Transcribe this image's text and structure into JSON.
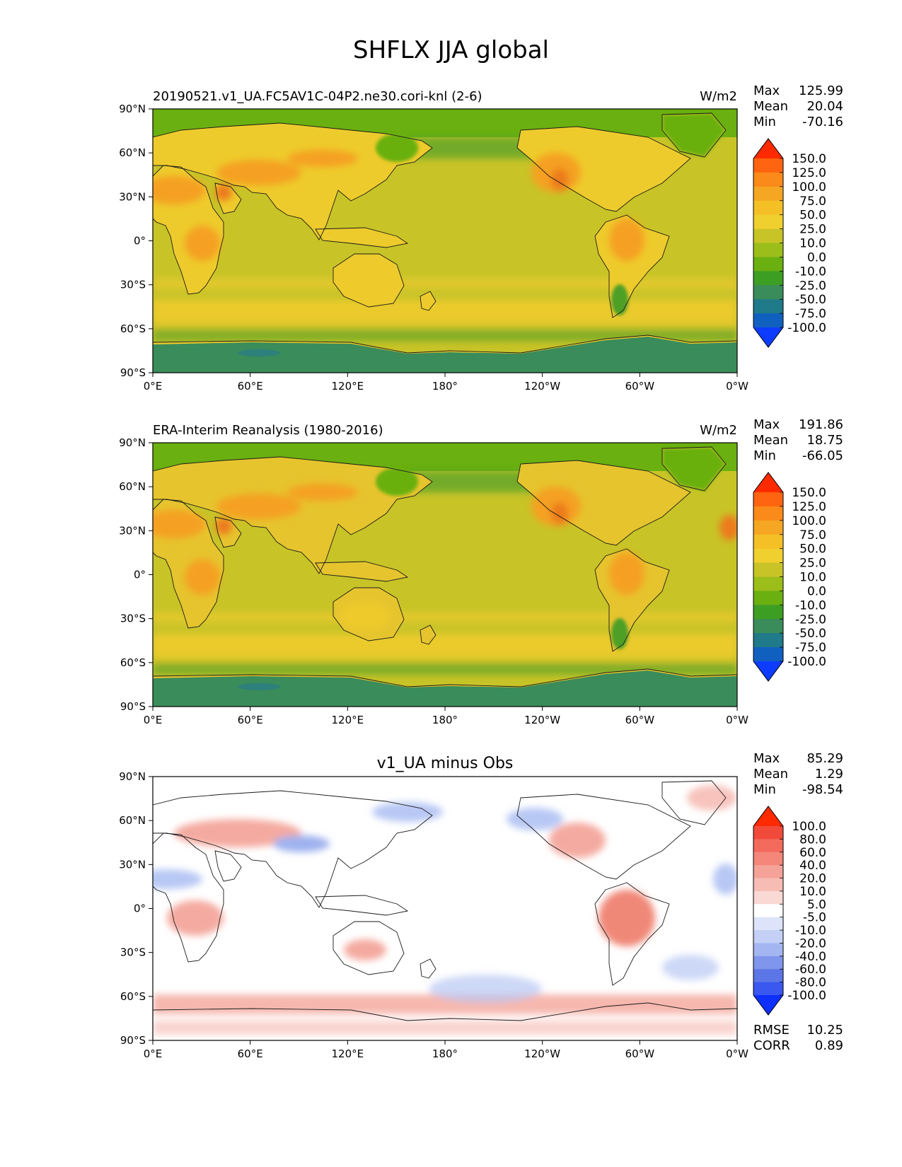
{
  "figure_title": "SHFLX JJA global",
  "x_ticks": [
    "0°E",
    "60°E",
    "120°E",
    "180°",
    "120°W",
    "60°W",
    "0°W"
  ],
  "y_ticks": [
    "90°N",
    "60°N",
    "30°N",
    "0°",
    "30°S",
    "60°S",
    "90°S"
  ],
  "colors": {
    "ocean_main": "#c8c428",
    "ocean_warm": "#eecb2c",
    "land_hot": "#f5a020",
    "land_hotter": "#ec7a1c",
    "cool_green": "#6ab010",
    "deep_green": "#4e9f28",
    "ice": "#3a8c5a",
    "diff_pos": "#f4aaa0",
    "diff_neg": "#b8c8f4"
  },
  "panels": [
    {
      "id": "test",
      "title_left": "20190521.v1_UA.FC5AV1C-04P2.ne30.cori-knl (2-6)",
      "title_center": "",
      "units": "W/m2",
      "stats": {
        "max_label": "Max",
        "max": "125.99",
        "mean_label": "Mean",
        "mean": "20.04",
        "min_label": "Min",
        "min": "-70.16"
      },
      "colorbar": {
        "levels": [
          "150.0",
          "125.0",
          "100.0",
          "75.0",
          "50.0",
          "25.0",
          "10.0",
          "0.0",
          "-10.0",
          "-25.0",
          "-50.0",
          "-75.0",
          "-100.0"
        ],
        "colors": [
          "#ff2a00",
          "#ff6410",
          "#fa8a1a",
          "#f5a623",
          "#f4c025",
          "#f0d02e",
          "#c8c428",
          "#9cbe1a",
          "#6ab010",
          "#3d9e24",
          "#3a8c5a",
          "#1f7a8a",
          "#1060c0",
          "#0d3cff"
        ]
      }
    },
    {
      "id": "ref",
      "title_left": "ERA-Interim Reanalysis (1980-2016)",
      "title_center": "",
      "units": "W/m2",
      "stats": {
        "max_label": "Max",
        "max": "191.86",
        "mean_label": "Mean",
        "mean": "18.75",
        "min_label": "Min",
        "min": "-66.05"
      },
      "colorbar": {
        "levels": [
          "150.0",
          "125.0",
          "100.0",
          "75.0",
          "50.0",
          "25.0",
          "10.0",
          "0.0",
          "-10.0",
          "-25.0",
          "-50.0",
          "-75.0",
          "-100.0"
        ],
        "colors": [
          "#ff2a00",
          "#ff6410",
          "#fa8a1a",
          "#f5a623",
          "#f4c025",
          "#f0d02e",
          "#c8c428",
          "#9cbe1a",
          "#6ab010",
          "#3d9e24",
          "#3a8c5a",
          "#1f7a8a",
          "#1060c0",
          "#0d3cff"
        ]
      }
    },
    {
      "id": "diff",
      "title_left": "",
      "title_center": "v1_UA minus Obs",
      "units": "",
      "stats": {
        "max_label": "Max",
        "max": "85.29",
        "mean_label": "Mean",
        "mean": "1.29",
        "min_label": "Min",
        "min": "-98.54"
      },
      "colorbar": {
        "levels": [
          "100.0",
          "80.0",
          "60.0",
          "40.0",
          "20.0",
          "10.0",
          "5.0",
          "-5.0",
          "-10.0",
          "-20.0",
          "-40.0",
          "-60.0",
          "-80.0",
          "-100.0"
        ],
        "colors": [
          "#ff2a00",
          "#f24a3a",
          "#f36a5c",
          "#f4867a",
          "#f5a298",
          "#f7bcb4",
          "#fad8d4",
          "#ffffff",
          "#dde4fa",
          "#c4d0f6",
          "#a4b6f2",
          "#8096ec",
          "#5c76e8",
          "#3a58f0",
          "#0d30ff"
        ]
      },
      "rmse_label": "RMSE",
      "rmse": "10.25",
      "corr_label": "CORR",
      "corr": "0.89"
    }
  ]
}
